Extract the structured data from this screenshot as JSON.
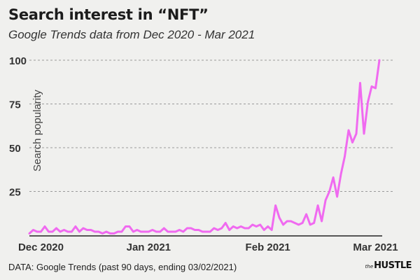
{
  "chart_data": {
    "type": "line",
    "title": "Search interest in “NFT”",
    "subtitle": "Google Trends data from Dec 2020 - Mar 2021",
    "ylabel": "Search popularity",
    "xlabel": "",
    "ylim": [
      0,
      100
    ],
    "yticks": [
      "25",
      "50",
      "75",
      "100"
    ],
    "xticks": [
      {
        "label": "Dec 2020",
        "day": 3
      },
      {
        "label": "Jan 2021",
        "day": 31
      },
      {
        "label": "Feb 2021",
        "day": 62
      },
      {
        "label": "Mar 2021",
        "day": 90
      }
    ],
    "grid": true,
    "line_color": "#f06af0",
    "series": [
      {
        "values": [
          1,
          3,
          2,
          2,
          5,
          2,
          2,
          4,
          2,
          3,
          2,
          2,
          5,
          2,
          4,
          3,
          3,
          2,
          2,
          1,
          2,
          1,
          1,
          2,
          2,
          5,
          5,
          2,
          3,
          2,
          2,
          2,
          3,
          2,
          2,
          4,
          2,
          2,
          2,
          3,
          2,
          4,
          4,
          3,
          3,
          2,
          2,
          2,
          4,
          3,
          4,
          7,
          3,
          5,
          4,
          5,
          4,
          4,
          6,
          5,
          6,
          3,
          5,
          3,
          17,
          10,
          6,
          8,
          8,
          7,
          6,
          7,
          12,
          6,
          7,
          17,
          8,
          20,
          25,
          33,
          22,
          35,
          45,
          60,
          53,
          58,
          87,
          58,
          76,
          85,
          84,
          100
        ]
      }
    ]
  },
  "footer": {
    "source": "DATA: Google Trends (past 90 days, ending 03/02/2021)",
    "brand_small": "the",
    "brand_main": "HUSTLE"
  }
}
